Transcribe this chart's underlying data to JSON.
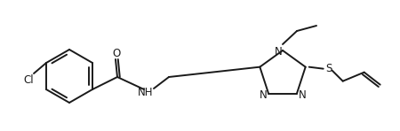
{
  "background_color": "#ffffff",
  "line_color": "#1a1a1a",
  "line_width": 1.4,
  "figsize": [
    4.5,
    1.48
  ],
  "dpi": 100,
  "xlim": [
    0,
    450
  ],
  "ylim": [
    0,
    148
  ]
}
